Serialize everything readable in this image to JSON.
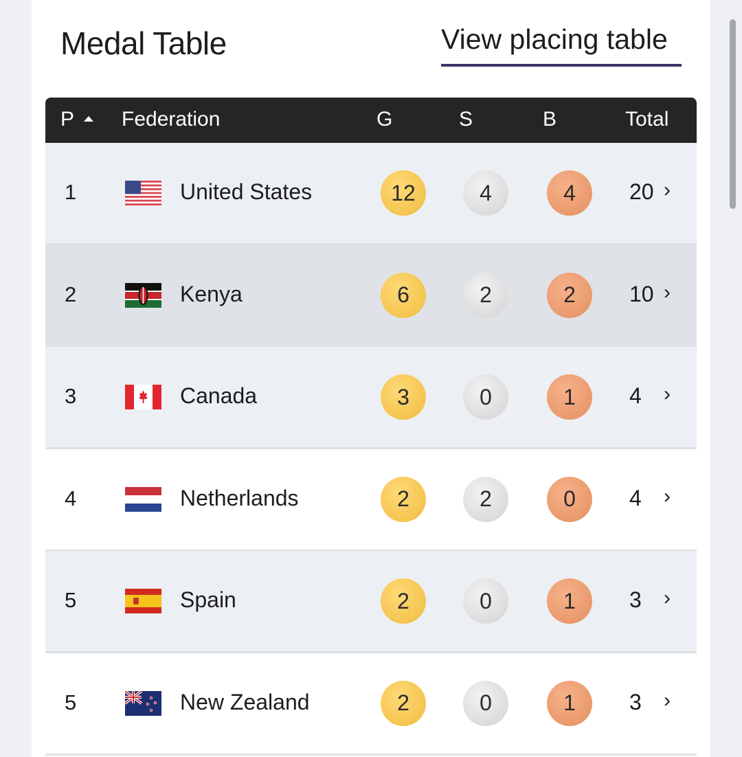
{
  "header": {
    "title": "Medal Table",
    "placing_link": "View placing table"
  },
  "table": {
    "columns": {
      "position": "P",
      "federation": "Federation",
      "gold": "G",
      "silver": "S",
      "bronze": "B",
      "total": "Total"
    },
    "rows": [
      {
        "position": "1",
        "federation": "United States",
        "flag": "us-flag",
        "gold": "12",
        "silver": "4",
        "bronze": "4",
        "total": "20",
        "bg": "#eceff4"
      },
      {
        "position": "2",
        "federation": "Kenya",
        "flag": "kenya-flag",
        "gold": "6",
        "silver": "2",
        "bronze": "2",
        "total": "10",
        "bg": "#dfe2e7"
      },
      {
        "position": "3",
        "federation": "Canada",
        "flag": "canada-flag",
        "gold": "3",
        "silver": "0",
        "bronze": "1",
        "total": "4",
        "bg": "#eceff4"
      },
      {
        "position": "4",
        "federation": "Netherlands",
        "flag": "netherlands-flag",
        "gold": "2",
        "silver": "2",
        "bronze": "0",
        "total": "4",
        "bg": "#ffffff"
      },
      {
        "position": "5",
        "federation": "Spain",
        "flag": "spain-flag",
        "gold": "2",
        "silver": "0",
        "bronze": "1",
        "total": "3",
        "bg": "#eceff4"
      },
      {
        "position": "5",
        "federation": "New Zealand",
        "flag": "new-zealand-flag",
        "gold": "2",
        "silver": "0",
        "bronze": "1",
        "total": "3",
        "bg": "#ffffff"
      }
    ]
  },
  "chevron_glyph": "›"
}
